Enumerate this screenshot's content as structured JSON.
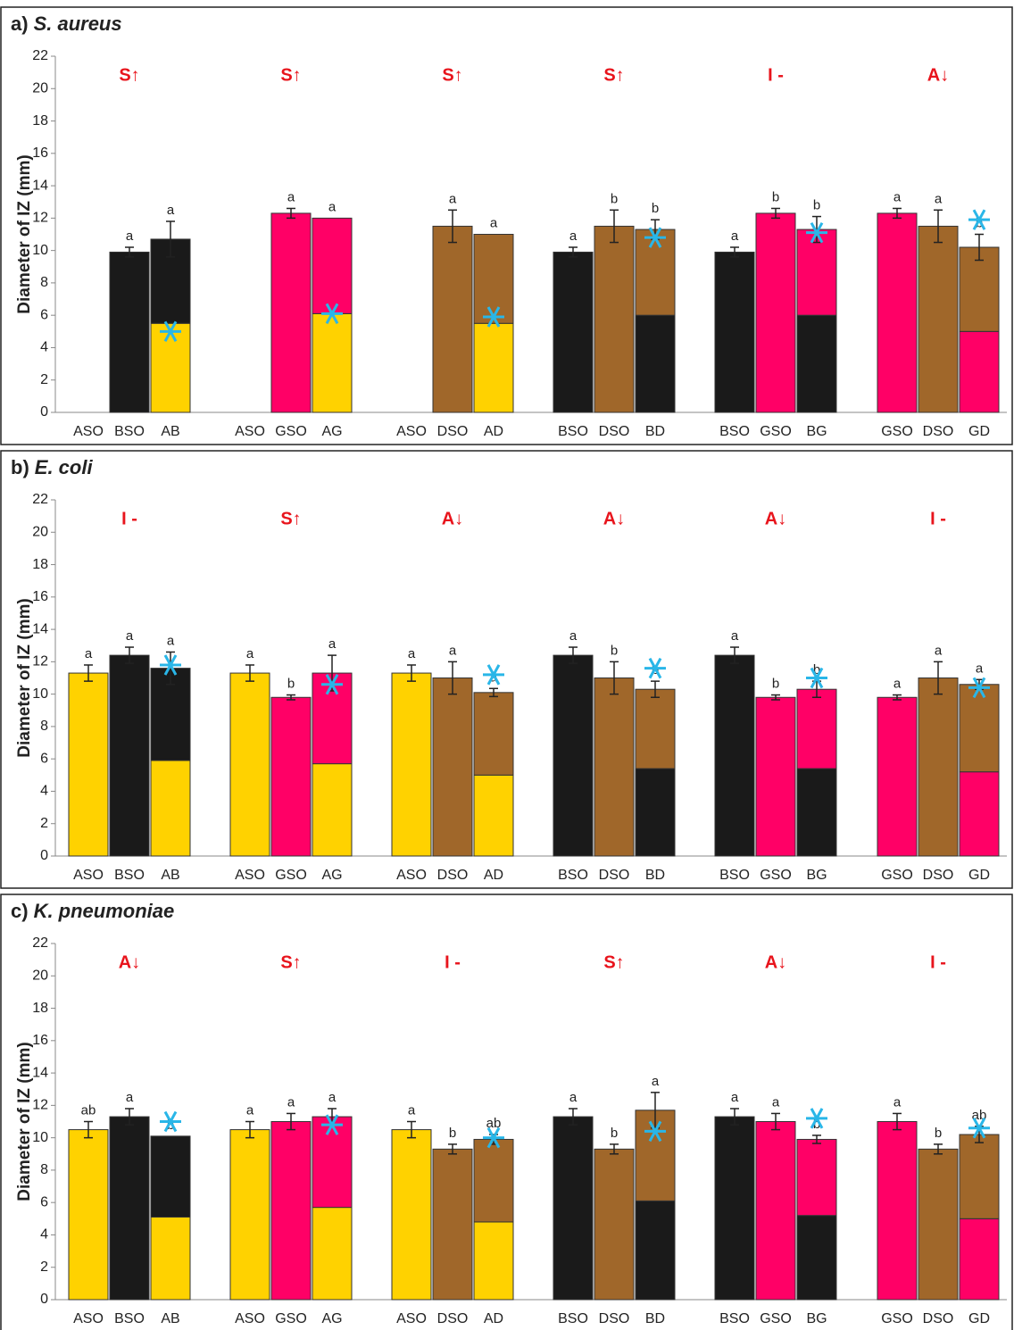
{
  "chart_data": [
    {
      "type": "bar",
      "panel": "a)",
      "title": "S. aureus",
      "y_label": "Diameter of IZ (mm)",
      "ylim": [
        0,
        22
      ],
      "yticks": [
        0,
        2,
        4,
        6,
        8,
        10,
        12,
        14,
        16,
        18,
        20,
        22
      ],
      "marker_color": "#29b6e8",
      "groups": [
        {
          "label": "S↑",
          "asterisk": 5.0,
          "bars": [
            {
              "category": "ASO",
              "segments": [
                {
                  "value": 0,
                  "color": "#ffd200"
                }
              ]
            },
            {
              "category": "BSO",
              "segments": [
                {
                  "value": 9.9,
                  "color": "#1a1a1a"
                }
              ],
              "error": 0.3,
              "letter": "a"
            },
            {
              "category": "AB",
              "segments": [
                {
                  "value": 5.5,
                  "color": "#ffd200"
                },
                {
                  "value": 5.2,
                  "color": "#1a1a1a"
                }
              ],
              "error": 1.1,
              "letter": "a"
            }
          ]
        },
        {
          "label": "S↑",
          "asterisk": 6.1,
          "bars": [
            {
              "category": "ASO",
              "segments": [
                {
                  "value": 0,
                  "color": "#ffd200"
                }
              ]
            },
            {
              "category": "GSO",
              "segments": [
                {
                  "value": 12.3,
                  "color": "#ff0066"
                }
              ],
              "error": 0.3,
              "letter": "a"
            },
            {
              "category": "AG",
              "segments": [
                {
                  "value": 6.1,
                  "color": "#ffd200"
                },
                {
                  "value": 5.9,
                  "color": "#ff0066"
                }
              ],
              "letter": "a"
            }
          ]
        },
        {
          "label": "S↑",
          "asterisk": 5.9,
          "bars": [
            {
              "category": "ASO",
              "segments": [
                {
                  "value": 0,
                  "color": "#ffd200"
                }
              ]
            },
            {
              "category": "DSO",
              "segments": [
                {
                  "value": 11.5,
                  "color": "#a0672a"
                }
              ],
              "error": 1.0,
              "letter": "a"
            },
            {
              "category": "AD",
              "segments": [
                {
                  "value": 5.5,
                  "color": "#ffd200"
                },
                {
                  "value": 5.5,
                  "color": "#a0672a"
                }
              ],
              "letter": "a"
            }
          ]
        },
        {
          "label": "S↑",
          "asterisk": 10.8,
          "bars": [
            {
              "category": "BSO",
              "segments": [
                {
                  "value": 9.9,
                  "color": "#1a1a1a"
                }
              ],
              "error": 0.3,
              "letter": "a"
            },
            {
              "category": "DSO",
              "segments": [
                {
                  "value": 11.5,
                  "color": "#a0672a"
                }
              ],
              "error": 1.0,
              "letter": "b"
            },
            {
              "category": "BD",
              "segments": [
                {
                  "value": 6.0,
                  "color": "#1a1a1a"
                },
                {
                  "value": 5.3,
                  "color": "#a0672a"
                }
              ],
              "error": 0.6,
              "letter": "b"
            }
          ]
        },
        {
          "label": "I -",
          "asterisk": 11.1,
          "bars": [
            {
              "category": "BSO",
              "segments": [
                {
                  "value": 9.9,
                  "color": "#1a1a1a"
                }
              ],
              "error": 0.3,
              "letter": "a"
            },
            {
              "category": "GSO",
              "segments": [
                {
                  "value": 12.3,
                  "color": "#ff0066"
                }
              ],
              "error": 0.3,
              "letter": "b"
            },
            {
              "category": "BG",
              "segments": [
                {
                  "value": 6.0,
                  "color": "#1a1a1a"
                },
                {
                  "value": 5.3,
                  "color": "#ff0066"
                }
              ],
              "error": 0.8,
              "letter": "b"
            }
          ]
        },
        {
          "label": "A↓",
          "asterisk": 11.9,
          "bars": [
            {
              "category": "GSO",
              "segments": [
                {
                  "value": 12.3,
                  "color": "#ff0066"
                }
              ],
              "error": 0.3,
              "letter": "a"
            },
            {
              "category": "DSO",
              "segments": [
                {
                  "value": 11.5,
                  "color": "#a0672a"
                }
              ],
              "error": 1.0,
              "letter": "a"
            },
            {
              "category": "GD",
              "segments": [
                {
                  "value": 5.0,
                  "color": "#ff0066"
                },
                {
                  "value": 5.2,
                  "color": "#a0672a"
                }
              ],
              "error": 0.8,
              "letter": "b"
            }
          ]
        }
      ]
    },
    {
      "type": "bar",
      "panel": "b)",
      "title": "E. coli",
      "y_label": "Diameter of IZ (mm)",
      "ylim": [
        0,
        22
      ],
      "yticks": [
        0,
        2,
        4,
        6,
        8,
        10,
        12,
        14,
        16,
        18,
        20,
        22
      ],
      "marker_color": "#29b6e8",
      "groups": [
        {
          "label": "I -",
          "asterisk": 11.8,
          "bars": [
            {
              "category": "ASO",
              "segments": [
                {
                  "value": 11.3,
                  "color": "#ffd200"
                }
              ],
              "error": 0.5,
              "letter": "a"
            },
            {
              "category": "BSO",
              "segments": [
                {
                  "value": 12.4,
                  "color": "#1a1a1a"
                }
              ],
              "error": 0.5,
              "letter": "a"
            },
            {
              "category": "AB",
              "segments": [
                {
                  "value": 5.9,
                  "color": "#ffd200"
                },
                {
                  "value": 5.7,
                  "color": "#1a1a1a"
                }
              ],
              "error": 1.0,
              "letter": "a"
            }
          ]
        },
        {
          "label": "S↑",
          "asterisk": 10.6,
          "bars": [
            {
              "category": "ASO",
              "segments": [
                {
                  "value": 11.3,
                  "color": "#ffd200"
                }
              ],
              "error": 0.5,
              "letter": "a"
            },
            {
              "category": "GSO",
              "segments": [
                {
                  "value": 9.8,
                  "color": "#ff0066"
                }
              ],
              "error": 0.15,
              "letter": "b"
            },
            {
              "category": "AG",
              "segments": [
                {
                  "value": 5.7,
                  "color": "#ffd200"
                },
                {
                  "value": 5.6,
                  "color": "#ff0066"
                }
              ],
              "error": 1.1,
              "letter": "a"
            }
          ]
        },
        {
          "label": "A↓",
          "asterisk": 11.2,
          "bars": [
            {
              "category": "ASO",
              "segments": [
                {
                  "value": 11.3,
                  "color": "#ffd200"
                }
              ],
              "error": 0.5,
              "letter": "a"
            },
            {
              "category": "DSO",
              "segments": [
                {
                  "value": 11.0,
                  "color": "#a0672a"
                }
              ],
              "error": 1.0,
              "letter": "a"
            },
            {
              "category": "AD",
              "segments": [
                {
                  "value": 5.0,
                  "color": "#ffd200"
                },
                {
                  "value": 5.1,
                  "color": "#a0672a"
                }
              ],
              "error": 0.25,
              "letter": "a"
            }
          ]
        },
        {
          "label": "A↓",
          "asterisk": 11.6,
          "bars": [
            {
              "category": "BSO",
              "segments": [
                {
                  "value": 12.4,
                  "color": "#1a1a1a"
                }
              ],
              "error": 0.5,
              "letter": "a"
            },
            {
              "category": "DSO",
              "segments": [
                {
                  "value": 11.0,
                  "color": "#a0672a"
                }
              ],
              "error": 1.0,
              "letter": "b"
            },
            {
              "category": "BD",
              "segments": [
                {
                  "value": 5.4,
                  "color": "#1a1a1a"
                },
                {
                  "value": 4.9,
                  "color": "#a0672a"
                }
              ],
              "error": 0.5,
              "letter": "b"
            }
          ]
        },
        {
          "label": "A↓",
          "asterisk": 11.0,
          "bars": [
            {
              "category": "BSO",
              "segments": [
                {
                  "value": 12.4,
                  "color": "#1a1a1a"
                }
              ],
              "error": 0.5,
              "letter": "a"
            },
            {
              "category": "GSO",
              "segments": [
                {
                  "value": 9.8,
                  "color": "#ff0066"
                }
              ],
              "error": 0.15,
              "letter": "b"
            },
            {
              "category": "BG",
              "segments": [
                {
                  "value": 5.4,
                  "color": "#1a1a1a"
                },
                {
                  "value": 4.9,
                  "color": "#ff0066"
                }
              ],
              "error": 0.5,
              "letter": "b"
            }
          ]
        },
        {
          "label": "I -",
          "asterisk": 10.4,
          "bars": [
            {
              "category": "GSO",
              "segments": [
                {
                  "value": 9.8,
                  "color": "#ff0066"
                }
              ],
              "error": 0.15,
              "letter": "a"
            },
            {
              "category": "DSO",
              "segments": [
                {
                  "value": 11.0,
                  "color": "#a0672a"
                }
              ],
              "error": 1.0,
              "letter": "a"
            },
            {
              "category": "GD",
              "segments": [
                {
                  "value": 5.2,
                  "color": "#ff0066"
                },
                {
                  "value": 5.4,
                  "color": "#a0672a"
                }
              ],
              "error": 0.3,
              "letter": "a"
            }
          ]
        }
      ]
    },
    {
      "type": "bar",
      "panel": "c)",
      "title": "K. pneumoniae",
      "y_label": "Diameter of IZ (mm)",
      "ylim": [
        0,
        22
      ],
      "yticks": [
        0,
        2,
        4,
        6,
        8,
        10,
        12,
        14,
        16,
        18,
        20,
        22
      ],
      "marker_color": "#29b6e8",
      "groups": [
        {
          "label": "A↓",
          "asterisk": 11.0,
          "bars": [
            {
              "category": "ASO",
              "segments": [
                {
                  "value": 10.5,
                  "color": "#ffd200"
                }
              ],
              "error": 0.5,
              "letter": "ab"
            },
            {
              "category": "BSO",
              "segments": [
                {
                  "value": 11.3,
                  "color": "#1a1a1a"
                }
              ],
              "error": 0.5,
              "letter": "a"
            },
            {
              "category": "AB",
              "segments": [
                {
                  "value": 5.1,
                  "color": "#ffd200"
                },
                {
                  "value": 5.0,
                  "color": "#1a1a1a"
                }
              ],
              "letter": "b"
            }
          ]
        },
        {
          "label": "S↑",
          "asterisk": 10.8,
          "bars": [
            {
              "category": "ASO",
              "segments": [
                {
                  "value": 10.5,
                  "color": "#ffd200"
                }
              ],
              "error": 0.5,
              "letter": "a"
            },
            {
              "category": "GSO",
              "segments": [
                {
                  "value": 11.0,
                  "color": "#ff0066"
                }
              ],
              "error": 0.5,
              "letter": "a"
            },
            {
              "category": "AG",
              "segments": [
                {
                  "value": 5.7,
                  "color": "#ffd200"
                },
                {
                  "value": 5.6,
                  "color": "#ff0066"
                }
              ],
              "error": 0.5,
              "letter": "a"
            }
          ]
        },
        {
          "label": "I -",
          "asterisk": 10.0,
          "bars": [
            {
              "category": "ASO",
              "segments": [
                {
                  "value": 10.5,
                  "color": "#ffd200"
                }
              ],
              "error": 0.5,
              "letter": "a"
            },
            {
              "category": "DSO",
              "segments": [
                {
                  "value": 9.3,
                  "color": "#a0672a"
                }
              ],
              "error": 0.3,
              "letter": "b"
            },
            {
              "category": "AD",
              "segments": [
                {
                  "value": 4.8,
                  "color": "#ffd200"
                },
                {
                  "value": 5.1,
                  "color": "#a0672a"
                }
              ],
              "error": 0.3,
              "letter": "ab"
            }
          ]
        },
        {
          "label": "S↑",
          "asterisk": 10.4,
          "bars": [
            {
              "category": "BSO",
              "segments": [
                {
                  "value": 11.3,
                  "color": "#1a1a1a"
                }
              ],
              "error": 0.5,
              "letter": "a"
            },
            {
              "category": "DSO",
              "segments": [
                {
                  "value": 9.3,
                  "color": "#a0672a"
                }
              ],
              "error": 0.3,
              "letter": "b"
            },
            {
              "category": "BD",
              "segments": [
                {
                  "value": 6.1,
                  "color": "#1a1a1a"
                },
                {
                  "value": 5.6,
                  "color": "#a0672a"
                }
              ],
              "error": 1.1,
              "letter": "a"
            }
          ]
        },
        {
          "label": "A↓",
          "asterisk": 11.2,
          "bars": [
            {
              "category": "BSO",
              "segments": [
                {
                  "value": 11.3,
                  "color": "#1a1a1a"
                }
              ],
              "error": 0.5,
              "letter": "a"
            },
            {
              "category": "GSO",
              "segments": [
                {
                  "value": 11.0,
                  "color": "#ff0066"
                }
              ],
              "error": 0.5,
              "letter": "a"
            },
            {
              "category": "BG",
              "segments": [
                {
                  "value": 5.2,
                  "color": "#1a1a1a"
                },
                {
                  "value": 4.7,
                  "color": "#ff0066"
                }
              ],
              "error": 0.25,
              "letter": "b"
            }
          ]
        },
        {
          "label": "I -",
          "asterisk": 10.6,
          "bars": [
            {
              "category": "GSO",
              "segments": [
                {
                  "value": 11.0,
                  "color": "#ff0066"
                }
              ],
              "error": 0.5,
              "letter": "a"
            },
            {
              "category": "DSO",
              "segments": [
                {
                  "value": 9.3,
                  "color": "#a0672a"
                }
              ],
              "error": 0.3,
              "letter": "b"
            },
            {
              "category": "GD",
              "segments": [
                {
                  "value": 5.0,
                  "color": "#ff0066"
                },
                {
                  "value": 5.2,
                  "color": "#a0672a"
                }
              ],
              "error": 0.5,
              "letter": "ab"
            }
          ]
        }
      ]
    }
  ]
}
